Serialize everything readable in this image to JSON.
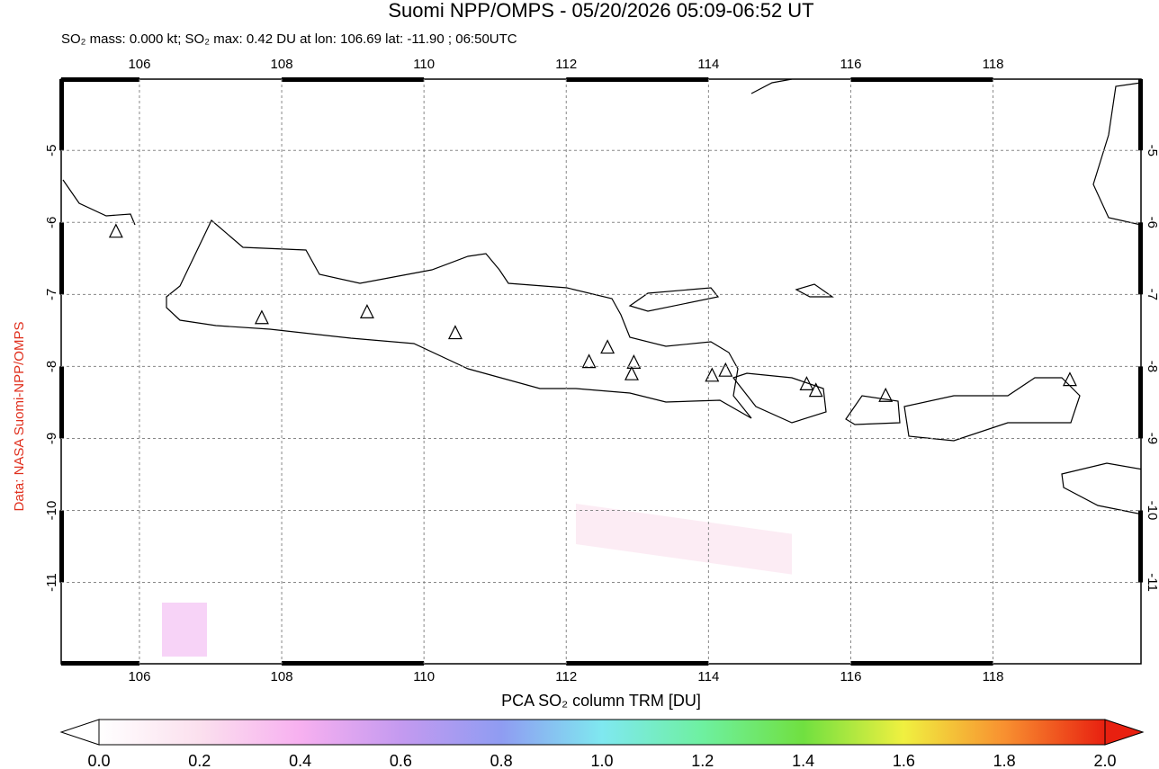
{
  "chart_data": {
    "type": "map",
    "title": "Suomi NPP/OMPS - 05/20/2026 05:09-06:52 UT",
    "subtitle": "SO₂ mass: 0.000 kt; SO₂ max: 0.42 DU at lon: 106.69 lat: -11.90 ; 06:50UTC",
    "credit": "Data: NASA Suomi-NPP/OMPS",
    "xlim": [
      104.9,
      120.08
    ],
    "ylim": [
      -12.13,
      -4.01
    ],
    "xticks": [
      106,
      108,
      110,
      112,
      114,
      116,
      118
    ],
    "yticks": [
      -5,
      -6,
      -7,
      -8,
      -9,
      -10,
      -11
    ],
    "grid": true,
    "markers": {
      "lon": [
        105.67,
        107.72,
        109.2,
        110.44,
        112.32,
        112.58,
        112.95,
        112.92,
        114.05,
        114.24,
        115.38,
        115.51,
        116.49,
        119.08
      ],
      "lat": [
        -6.13,
        -7.33,
        -7.25,
        -7.54,
        -7.94,
        -7.74,
        -7.95,
        -8.11,
        -8.13,
        -8.06,
        -8.25,
        -8.34,
        -8.41,
        -8.19
      ]
    },
    "colorbar": {
      "label": "PCA SO₂ column TRM [DU]",
      "clim": [
        0,
        2
      ],
      "ticks": [
        {
          "value": 0,
          "label": "0.0"
        },
        {
          "value": 0.2,
          "label": "0.2"
        },
        {
          "value": 0.4,
          "label": "0.4"
        },
        {
          "value": 0.6,
          "label": "0.6"
        },
        {
          "value": 0.8,
          "label": "0.8"
        },
        {
          "value": 1,
          "label": "1.0"
        },
        {
          "value": 1.2,
          "label": "1.2"
        },
        {
          "value": 1.4,
          "label": "1.4"
        },
        {
          "value": 1.6,
          "label": "1.6"
        },
        {
          "value": 1.8,
          "label": "1.8"
        },
        {
          "value": 2,
          "label": "2.0"
        }
      ]
    }
  }
}
